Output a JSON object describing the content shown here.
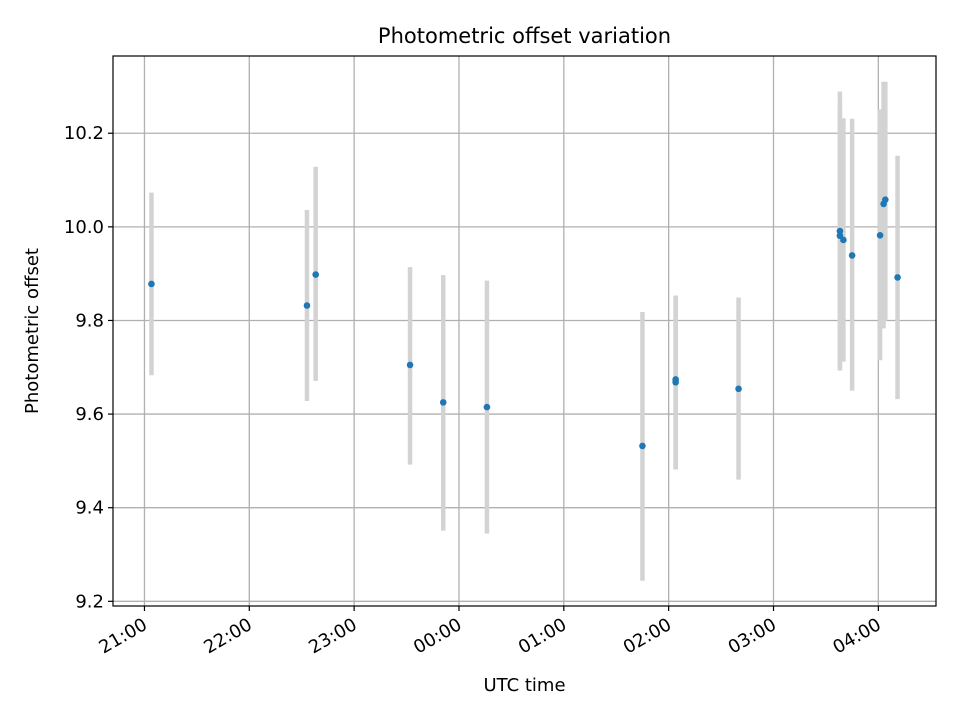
{
  "chart_data": {
    "type": "scatter",
    "title": "Photometric offset variation",
    "xlabel": "UTC time",
    "ylabel": "Photometric offset",
    "grid": true,
    "x_axis": {
      "scale": "time",
      "range_hours": [
        20.7,
        28.55
      ],
      "ticks_hours": [
        21,
        22,
        23,
        24,
        25,
        26,
        27,
        28
      ],
      "tick_labels": [
        "21:00",
        "22:00",
        "23:00",
        "00:00",
        "01:00",
        "02:00",
        "03:00",
        "04:00"
      ]
    },
    "y_axis": {
      "range": [
        9.19,
        10.365
      ],
      "ticks": [
        9.2,
        9.4,
        9.6,
        9.8,
        10.0,
        10.2
      ],
      "tick_labels": [
        "9.2",
        "9.4",
        "9.6",
        "9.8",
        "10.0",
        "10.2"
      ]
    },
    "colors": {
      "point": "#1f77b4",
      "errorbar": "#d3d3d3",
      "grid": "#b0b0b0"
    },
    "points": [
      {
        "t": "21:04",
        "y": 9.878,
        "low": 9.683,
        "high": 10.073
      },
      {
        "t": "22:33",
        "y": 9.832,
        "low": 9.628,
        "high": 10.036
      },
      {
        "t": "22:38",
        "y": 9.898,
        "low": 9.671,
        "high": 10.128
      },
      {
        "t": "23:32",
        "y": 9.705,
        "low": 9.492,
        "high": 9.914
      },
      {
        "t": "23:51",
        "y": 9.625,
        "low": 9.351,
        "high": 9.897
      },
      {
        "t": "00:16",
        "y": 9.615,
        "low": 9.345,
        "high": 9.885
      },
      {
        "t": "01:45",
        "y": 9.532,
        "low": 9.244,
        "high": 9.818
      },
      {
        "t": "02:04",
        "y": 9.674,
        "low": 9.482,
        "high": 9.853
      },
      {
        "t": "02:04",
        "y": 9.668,
        "low": 9.482,
        "high": 9.853
      },
      {
        "t": "02:40",
        "y": 9.654,
        "low": 9.46,
        "high": 9.849
      },
      {
        "t": "03:38",
        "y": 9.981,
        "low": 9.698,
        "high": 10.258
      },
      {
        "t": "03:38",
        "y": 9.991,
        "low": 9.693,
        "high": 10.289
      },
      {
        "t": "03:40",
        "y": 9.972,
        "low": 9.712,
        "high": 10.232
      },
      {
        "t": "03:45",
        "y": 9.939,
        "low": 9.65,
        "high": 10.231
      },
      {
        "t": "04:01",
        "y": 9.982,
        "low": 9.715,
        "high": 10.251
      },
      {
        "t": "04:03",
        "y": 10.049,
        "low": 9.783,
        "high": 10.31
      },
      {
        "t": "04:04",
        "y": 10.058,
        "low": 9.8,
        "high": 10.31
      },
      {
        "t": "04:11",
        "y": 9.892,
        "low": 9.632,
        "high": 10.152
      }
    ]
  }
}
